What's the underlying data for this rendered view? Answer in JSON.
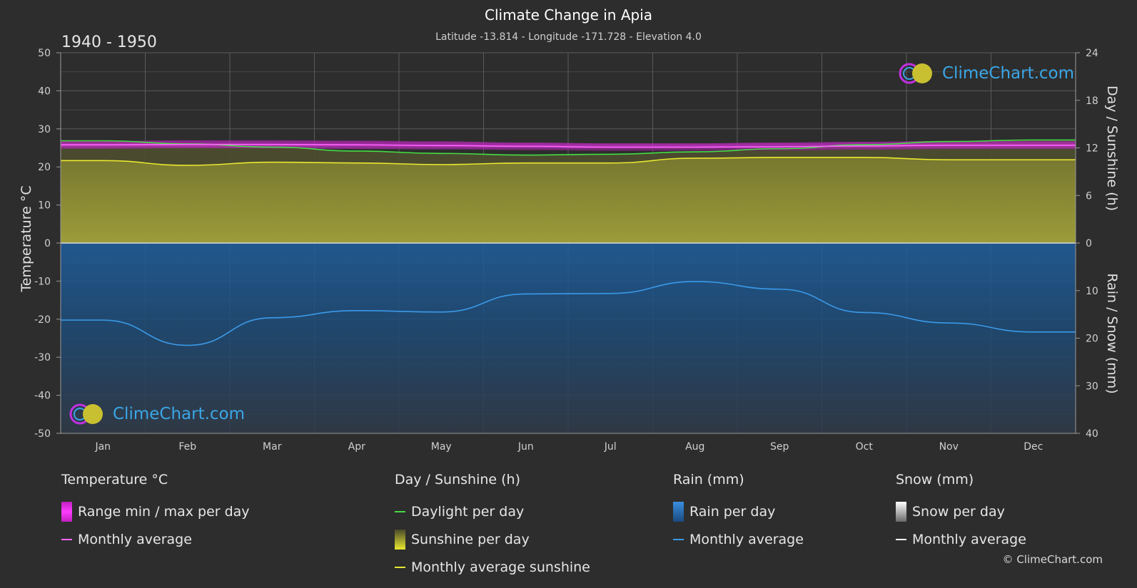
{
  "title": "Climate Change in Apia",
  "subtitle": "Latitude -13.814 - Longitude -171.728 - Elevation 4.0",
  "period": "1940 - 1950",
  "logo_text": "ClimeChart.com",
  "copyright": "© ClimeChart.com",
  "colors": {
    "background": "#2d2d2d",
    "temp_range": "#e020e0",
    "temp_avg": "#ff66ff",
    "daylight": "#44dd44",
    "sunshine_fill": "#b8b83a",
    "sunshine_avg": "#e8e830",
    "rain": "#2a78c8",
    "rain_avg": "#3a9ae8",
    "snow_avg": "#ffffff"
  },
  "legend": {
    "temperature": {
      "header": "Temperature °C",
      "range_label": "Range min / max per day",
      "avg_label": "Monthly average"
    },
    "sunshine": {
      "header": "Day / Sunshine (h)",
      "daylight_label": "Daylight per day",
      "sunshine_label": "Sunshine per day",
      "avg_label": "Monthly average sunshine"
    },
    "rain": {
      "header": "Rain (mm)",
      "rain_label": "Rain per day",
      "avg_label": "Monthly average"
    },
    "snow": {
      "header": "Snow (mm)",
      "snow_label": "Snow per day",
      "avg_label": "Monthly average"
    }
  },
  "chart_data": {
    "type": "area",
    "categories": [
      "Jan",
      "Feb",
      "Mar",
      "Apr",
      "May",
      "Jun",
      "Jul",
      "Aug",
      "Sep",
      "Oct",
      "Nov",
      "Dec"
    ],
    "left_axis": {
      "label": "Temperature °C",
      "range": [
        -50,
        50
      ],
      "ticks": [
        50,
        40,
        30,
        20,
        10,
        0,
        -10,
        -20,
        -30,
        -40,
        -50
      ]
    },
    "right_axis_top": {
      "label": "Day / Sunshine (h)",
      "range": [
        0,
        24
      ],
      "ticks": [
        24,
        18,
        12,
        6,
        0
      ]
    },
    "right_axis_bottom": {
      "label": "Rain / Snow (mm)",
      "range": [
        0,
        40
      ],
      "ticks": [
        0,
        10,
        20,
        30,
        40
      ]
    },
    "grid": true,
    "series": [
      {
        "name": "Daylight per day",
        "unit": "h",
        "values": [
          12.9,
          12.5,
          12.1,
          11.6,
          11.3,
          11.1,
          11.2,
          11.5,
          11.9,
          12.4,
          12.8,
          13.0
        ]
      },
      {
        "name": "Monthly average sunshine",
        "unit": "h",
        "values": [
          10.4,
          9.8,
          10.2,
          10.1,
          9.9,
          10.1,
          10.1,
          10.7,
          10.8,
          10.8,
          10.5,
          10.5
        ]
      },
      {
        "name": "Temperature range max",
        "unit": "°C",
        "values": [
          26.8,
          27.0,
          27.0,
          26.9,
          26.7,
          26.4,
          26.2,
          26.2,
          26.4,
          26.6,
          26.8,
          26.8
        ]
      },
      {
        "name": "Temperature range min",
        "unit": "°C",
        "values": [
          24.8,
          24.9,
          24.9,
          24.7,
          24.6,
          24.4,
          24.2,
          24.2,
          24.3,
          24.5,
          24.7,
          24.7
        ]
      },
      {
        "name": "Temperature monthly average",
        "unit": "°C",
        "values": [
          25.8,
          25.9,
          25.9,
          25.8,
          25.6,
          25.4,
          25.2,
          25.2,
          25.3,
          25.5,
          25.7,
          25.7
        ]
      },
      {
        "name": "Rain monthly average",
        "unit": "mm",
        "values": [
          16.2,
          21.5,
          15.7,
          14.2,
          14.5,
          10.7,
          10.6,
          8.1,
          9.7,
          14.6,
          16.8,
          18.7
        ]
      },
      {
        "name": "Snow monthly average",
        "unit": "mm",
        "values": [
          0,
          0,
          0,
          0,
          0,
          0,
          0,
          0,
          0,
          0,
          0,
          0
        ]
      }
    ]
  }
}
